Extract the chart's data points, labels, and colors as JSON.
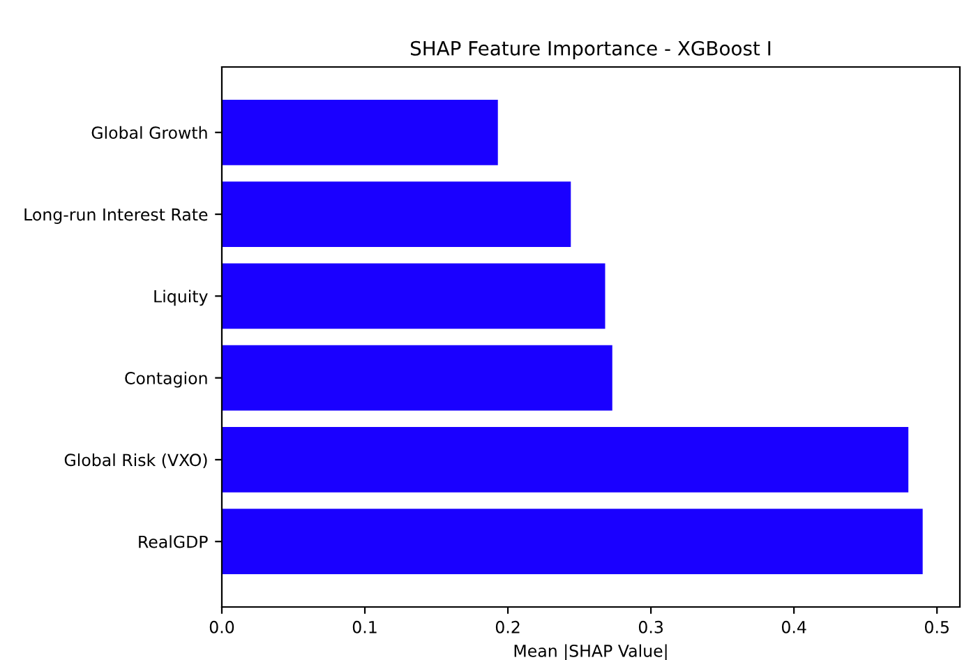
{
  "chart_data": {
    "type": "bar",
    "orientation": "horizontal",
    "title": "SHAP Feature Importance - XGBoost I",
    "xlabel": "Mean |SHAP Value|",
    "categories": [
      "Global Growth",
      "Long-run Interest Rate",
      "Liquity",
      "Contagion",
      "Global Risk (VXO)",
      "RealGDP"
    ],
    "values": [
      0.193,
      0.244,
      0.268,
      0.273,
      0.48,
      0.49
    ],
    "color": "#1a00ff",
    "xlim": [
      0,
      0.516
    ],
    "xticks": [
      {
        "value": 0,
        "label": "0.0"
      },
      0.1,
      0.2,
      0.3,
      0.4,
      0.5
    ],
    "grid": false
  }
}
